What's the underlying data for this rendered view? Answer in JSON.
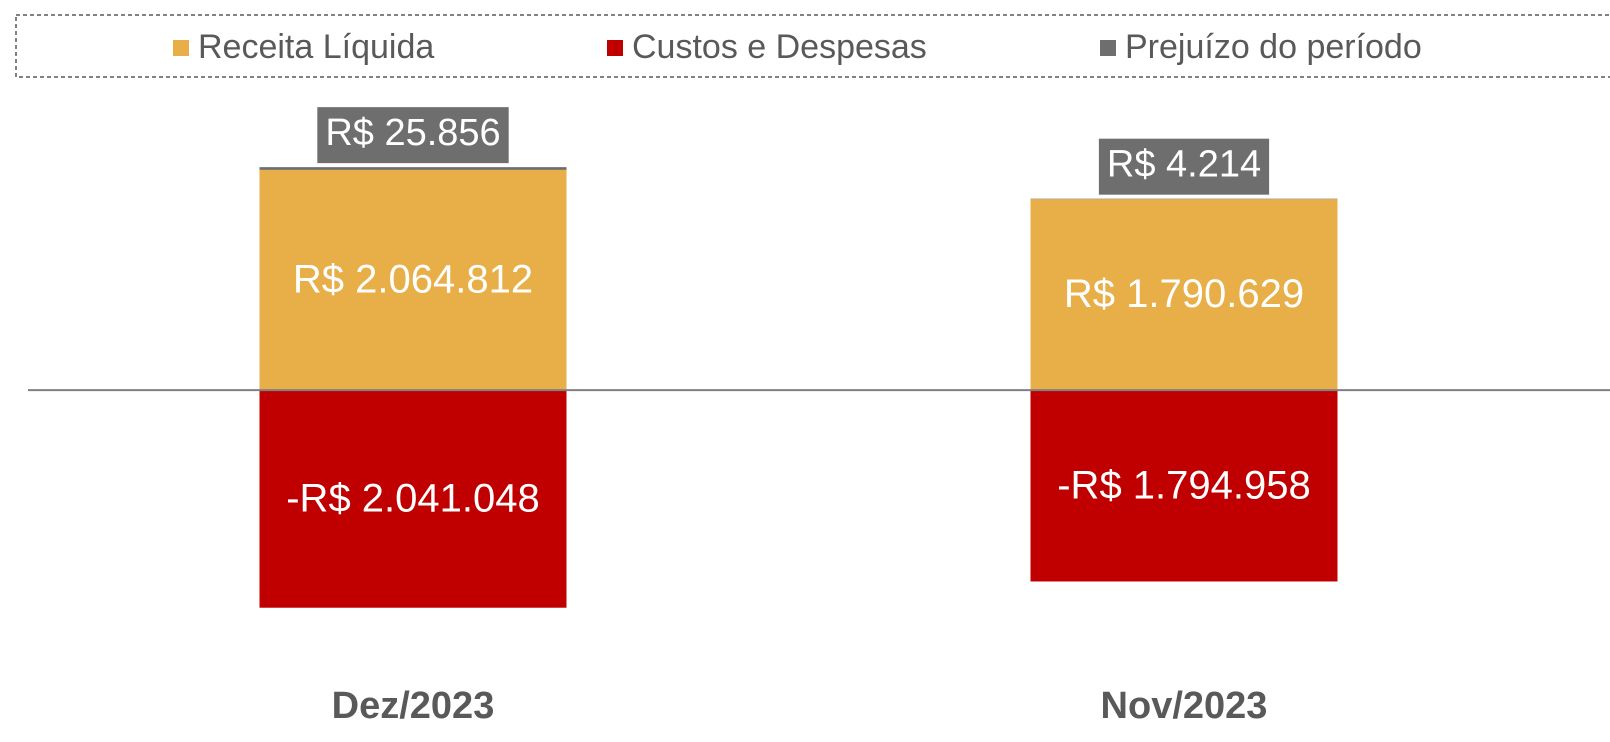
{
  "chart_data": {
    "type": "bar",
    "stacked": true,
    "categories": [
      "Dez/2023",
      "Nov/2023"
    ],
    "series": [
      {
        "name": "Receita Líquida",
        "color": "#E8AE47",
        "values": [
          2064812,
          1790629
        ],
        "value_labels": [
          "R$ 2.064.812",
          "R$ 1.790.629"
        ]
      },
      {
        "name": "Custos e Despesas",
        "color": "#C00000",
        "values": [
          -2041048,
          -1794958
        ],
        "value_labels": [
          "-R$ 2.041.048",
          "-R$ 1.794.958"
        ]
      },
      {
        "name": "Prejuízo do período",
        "color": "#6E6E6E",
        "values": [
          25856,
          4214
        ],
        "value_labels": [
          "R$ 25.856",
          "R$ 4.214"
        ]
      }
    ],
    "ylim": [
      -2400000,
      2800000
    ],
    "legend": "top"
  }
}
